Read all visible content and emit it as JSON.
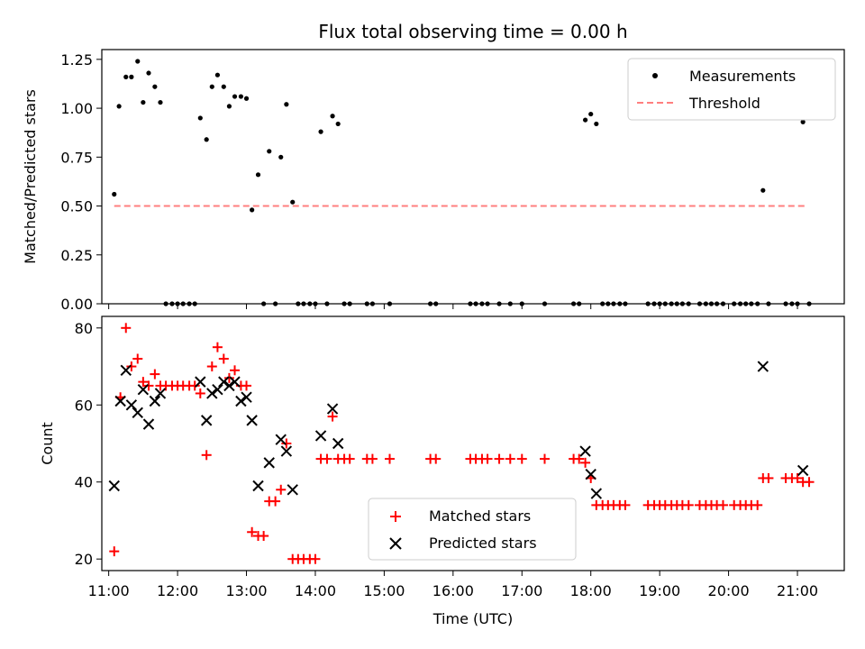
{
  "title": "Flux total observing time = 0.00 h",
  "xlabel": "Time (UTC)",
  "x_ticks": [
    "11:00",
    "12:00",
    "13:00",
    "14:00",
    "15:00",
    "16:00",
    "17:00",
    "18:00",
    "19:00",
    "20:00",
    "21:00"
  ],
  "colors": {
    "measurement": "#000000",
    "threshold": "#ff7f7f",
    "matched": "#ff0000",
    "predicted": "#000000"
  },
  "chart_data": [
    {
      "type": "scatter",
      "ylabel": "Matched/Predicted stars",
      "xlim_hours": [
        10.9,
        21.68
      ],
      "ylim": [
        0,
        1.3
      ],
      "y_ticks": [
        "0.00",
        "0.25",
        "0.50",
        "0.75",
        "1.00",
        "1.25"
      ],
      "legend": {
        "position": "top-right",
        "entries": [
          "Measurements",
          "Threshold"
        ]
      },
      "threshold": {
        "value": 0.5,
        "x_range": [
          11.08,
          21.15
        ]
      },
      "measurements": {
        "x": [
          11.08,
          11.15,
          11.25,
          11.33,
          11.42,
          11.5,
          11.58,
          11.67,
          11.75,
          11.83,
          11.92,
          12.0,
          12.08,
          12.17,
          12.25,
          12.33,
          12.42,
          12.5,
          12.58,
          12.67,
          12.75,
          12.83,
          12.92,
          13.0,
          13.08,
          13.17,
          13.25,
          13.33,
          13.42,
          13.5,
          13.58,
          13.67,
          13.75,
          13.83,
          13.92,
          14.0,
          14.08,
          14.17,
          14.25,
          14.33,
          14.42,
          14.5,
          14.75,
          14.83,
          15.08,
          15.67,
          15.75,
          16.25,
          16.33,
          16.42,
          16.5,
          16.67,
          16.83,
          17.0,
          17.33,
          17.75,
          17.83,
          17.92,
          18.0,
          18.08,
          18.17,
          18.25,
          18.33,
          18.42,
          18.5,
          18.83,
          18.92,
          19.0,
          19.08,
          19.17,
          19.25,
          19.33,
          19.42,
          19.58,
          19.67,
          19.75,
          19.83,
          19.92,
          20.08,
          20.17,
          20.25,
          20.33,
          20.42,
          20.5,
          20.58,
          20.83,
          20.92,
          21.0,
          21.08,
          21.17
        ],
        "y": [
          0.56,
          1.01,
          1.16,
          1.16,
          1.24,
          1.03,
          1.18,
          1.11,
          1.03,
          0,
          0,
          0,
          0,
          0,
          0,
          0.95,
          0.84,
          1.11,
          1.17,
          1.11,
          1.01,
          1.06,
          1.06,
          1.05,
          0.48,
          0.66,
          0,
          0.78,
          0,
          0.75,
          1.02,
          0.52,
          0,
          0,
          0,
          0,
          0.88,
          0,
          0.96,
          0.92,
          0,
          0,
          0,
          0,
          0,
          0,
          0,
          0,
          0,
          0,
          0,
          0,
          0,
          0,
          0,
          0,
          0,
          0.94,
          0.97,
          0.92,
          0,
          0,
          0,
          0,
          0,
          0,
          0,
          0,
          0,
          0,
          0,
          0,
          0,
          0,
          0,
          0,
          0,
          0,
          0,
          0,
          0,
          0,
          0,
          0.58,
          0,
          0,
          0,
          0,
          0.93,
          0
        ]
      }
    },
    {
      "type": "scatter",
      "ylabel": "Count",
      "xlim_hours": [
        10.9,
        21.68
      ],
      "ylim": [
        17,
        83
      ],
      "y_ticks": [
        "20",
        "40",
        "60",
        "80"
      ],
      "legend": {
        "position": "bottom-center",
        "entries": [
          "Matched stars",
          "Predicted stars"
        ]
      },
      "series": [
        {
          "name": "Matched stars",
          "marker": "plus",
          "x": [
            11.08,
            11.17,
            11.25,
            11.33,
            11.42,
            11.5,
            11.58,
            11.67,
            11.75,
            11.83,
            11.92,
            12.0,
            12.08,
            12.17,
            12.25,
            12.33,
            12.42,
            12.5,
            12.58,
            12.67,
            12.75,
            12.83,
            12.92,
            13.0,
            13.08,
            13.17,
            13.25,
            13.33,
            13.42,
            13.5,
            13.58,
            13.67,
            13.75,
            13.83,
            13.92,
            14.0,
            14.08,
            14.17,
            14.25,
            14.33,
            14.42,
            14.5,
            14.75,
            14.83,
            15.08,
            15.67,
            15.75,
            16.25,
            16.33,
            16.42,
            16.5,
            16.67,
            16.83,
            17.0,
            17.33,
            17.75,
            17.83,
            17.92,
            18.0,
            18.08,
            18.17,
            18.25,
            18.33,
            18.42,
            18.5,
            18.83,
            18.92,
            19.0,
            19.08,
            19.17,
            19.25,
            19.33,
            19.42,
            19.58,
            19.67,
            19.75,
            19.83,
            19.92,
            20.08,
            20.17,
            20.25,
            20.33,
            20.42,
            20.5,
            20.58,
            20.83,
            20.92,
            21.0,
            21.08,
            21.17
          ],
          "y": [
            22,
            62,
            80,
            70,
            72,
            66,
            65,
            68,
            65,
            65,
            65,
            65,
            65,
            65,
            65,
            63,
            47,
            70,
            75,
            72,
            67,
            69,
            65,
            65,
            27,
            26,
            26,
            35,
            35,
            38,
            50,
            20,
            20,
            20,
            20,
            20,
            46,
            46,
            57,
            46,
            46,
            46,
            46,
            46,
            46,
            46,
            46,
            46,
            46,
            46,
            46,
            46,
            46,
            46,
            46,
            46,
            46,
            45,
            41,
            34,
            34,
            34,
            34,
            34,
            34,
            34,
            34,
            34,
            34,
            34,
            34,
            34,
            34,
            34,
            34,
            34,
            34,
            34,
            34,
            34,
            34,
            34,
            34,
            41,
            41,
            41,
            41,
            41,
            40,
            40
          ]
        },
        {
          "name": "Predicted stars",
          "marker": "x",
          "x": [
            11.08,
            11.17,
            11.25,
            11.33,
            11.42,
            11.5,
            11.58,
            11.67,
            11.75,
            12.33,
            12.42,
            12.5,
            12.58,
            12.67,
            12.75,
            12.83,
            12.92,
            13.0,
            13.08,
            13.17,
            13.33,
            13.5,
            13.58,
            13.67,
            14.08,
            14.25,
            14.33,
            17.92,
            18.0,
            18.08,
            20.5,
            21.08
          ],
          "y": [
            39,
            61,
            69,
            60,
            58,
            64,
            55,
            61,
            63,
            66,
            56,
            63,
            64,
            66,
            65,
            66,
            61,
            62,
            56,
            39,
            45,
            51,
            48,
            38,
            52,
            59,
            50,
            48,
            42,
            37,
            70,
            43
          ]
        }
      ]
    }
  ]
}
